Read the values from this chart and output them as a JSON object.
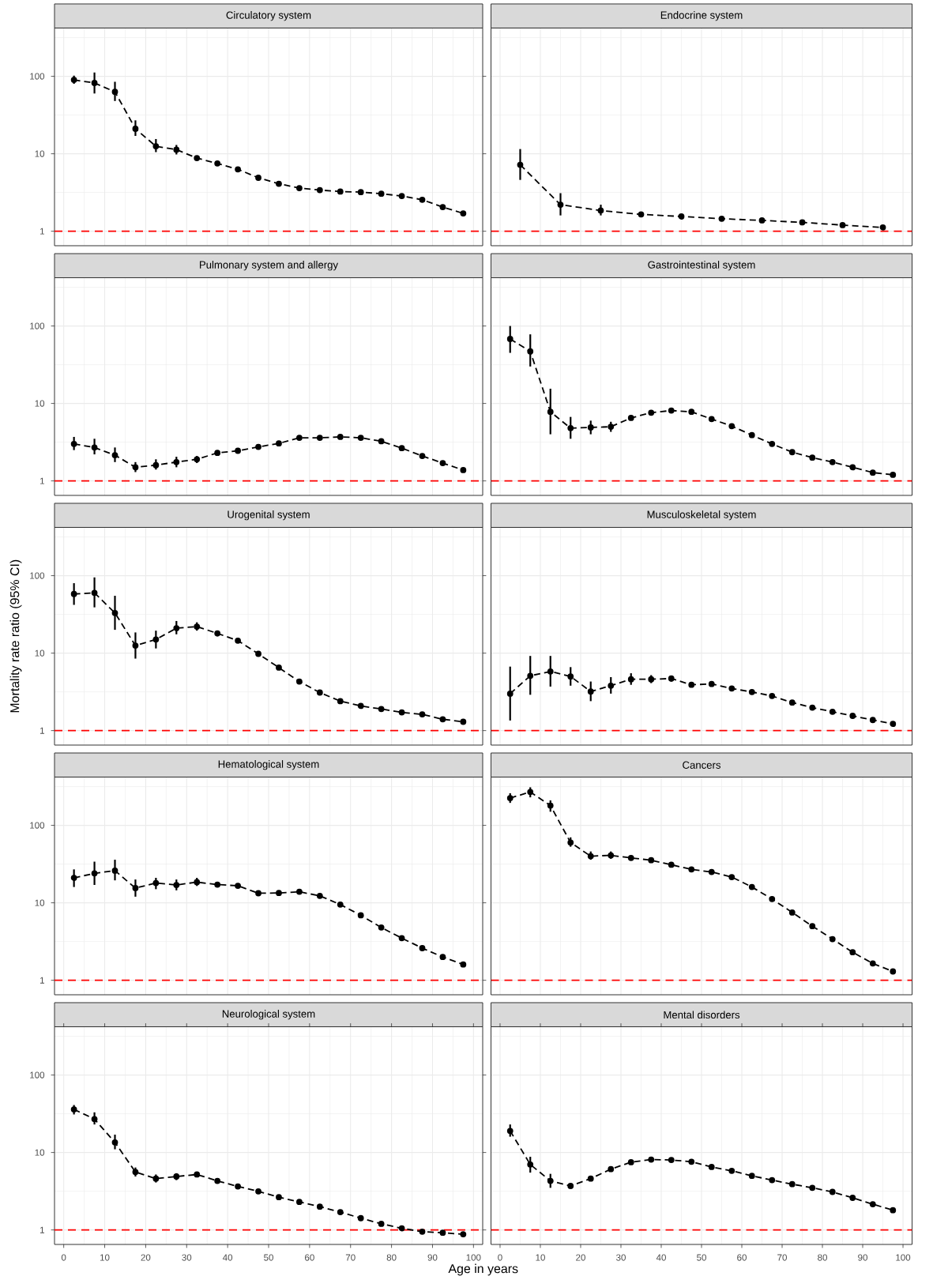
{
  "chart_data": [
    {
      "type": "line",
      "title": "Circulatory system",
      "x": [
        2.5,
        7.5,
        12.5,
        17.5,
        22.5,
        27.5,
        32.5,
        37.5,
        42.5,
        47.5,
        52.5,
        57.5,
        62.5,
        67.5,
        72.5,
        77.5,
        82.5,
        87.5,
        92.5,
        97.5
      ],
      "values": [
        90,
        82,
        63,
        21,
        12.5,
        11.3,
        8.8,
        7.5,
        6.3,
        4.9,
        4.1,
        3.6,
        3.4,
        3.25,
        3.2,
        3.05,
        2.85,
        2.55,
        2.05,
        1.7
      ],
      "errors": [
        [
          80,
          102
        ],
        [
          60,
          112
        ],
        [
          48,
          85
        ],
        [
          17,
          27
        ],
        [
          10.5,
          15.5
        ],
        [
          9.8,
          13
        ],
        null,
        null,
        null,
        null,
        null,
        null,
        null,
        null,
        null,
        null,
        null,
        null,
        null,
        null
      ],
      "color": "#000000",
      "xlim": [
        -2.25,
        102.25
      ],
      "ylim": [
        0.65,
        420
      ],
      "xticks": [
        0,
        10,
        20,
        30,
        40,
        50,
        60,
        70,
        80,
        90,
        100
      ],
      "yticks": [
        1,
        10,
        100
      ],
      "log": "y",
      "grid": true,
      "marker": "circle",
      "line_style": "dashed",
      "tick_labels": "y",
      "ref_lines": [
        {
          "axis": "y",
          "value": 1,
          "color": "#ff0000",
          "line_style": "dashed"
        }
      ]
    },
    {
      "type": "line",
      "title": "Endocrine system",
      "x": [
        5,
        15,
        25,
        35,
        45,
        55,
        65,
        75,
        85,
        95
      ],
      "values": [
        7.2,
        2.2,
        1.85,
        1.65,
        1.55,
        1.45,
        1.38,
        1.3,
        1.2,
        1.12
      ],
      "errors": [
        [
          4.6,
          11.5
        ],
        [
          1.6,
          3.1
        ],
        [
          1.6,
          2.2
        ],
        null,
        null,
        null,
        null,
        null,
        null,
        null
      ],
      "color": "#000000",
      "xlim": [
        -2.25,
        102.25
      ],
      "ylim": [
        0.65,
        420
      ],
      "xticks": [
        0,
        10,
        20,
        30,
        40,
        50,
        60,
        70,
        80,
        90,
        100
      ],
      "yticks": [
        1,
        10,
        100
      ],
      "log": "y",
      "grid": true,
      "marker": "circle",
      "line_style": "dashed",
      "tick_labels": false,
      "ref_lines": [
        {
          "axis": "y",
          "value": 1,
          "color": "#ff0000",
          "line_style": "dashed"
        }
      ]
    },
    {
      "type": "line",
      "title": "Pulmonary system and allergy",
      "x": [
        2.5,
        7.5,
        12.5,
        17.5,
        22.5,
        27.5,
        32.5,
        37.5,
        42.5,
        47.5,
        52.5,
        57.5,
        62.5,
        67.5,
        72.5,
        77.5,
        82.5,
        87.5,
        92.5,
        97.5
      ],
      "values": [
        3.0,
        2.7,
        2.15,
        1.5,
        1.6,
        1.75,
        1.9,
        2.3,
        2.45,
        2.75,
        3.05,
        3.6,
        3.6,
        3.7,
        3.6,
        3.25,
        2.65,
        2.1,
        1.7,
        1.38
      ],
      "errors": [
        [
          2.5,
          3.7
        ],
        [
          2.2,
          3.5
        ],
        [
          1.75,
          2.7
        ],
        [
          1.3,
          1.75
        ],
        [
          1.4,
          1.9
        ],
        [
          1.5,
          2.05
        ],
        [
          1.7,
          2.1
        ],
        null,
        null,
        null,
        null,
        null,
        null,
        null,
        null,
        null,
        null,
        null,
        null,
        null
      ],
      "color": "#000000",
      "xlim": [
        -2.25,
        102.25
      ],
      "ylim": [
        0.65,
        420
      ],
      "xticks": [
        0,
        10,
        20,
        30,
        40,
        50,
        60,
        70,
        80,
        90,
        100
      ],
      "yticks": [
        1,
        10,
        100
      ],
      "log": "y",
      "grid": true,
      "marker": "circle",
      "line_style": "dashed",
      "tick_labels": "y",
      "ref_lines": [
        {
          "axis": "y",
          "value": 1,
          "color": "#ff0000",
          "line_style": "dashed"
        }
      ]
    },
    {
      "type": "line",
      "title": "Gastrointestinal system",
      "x": [
        2.5,
        7.5,
        12.5,
        17.5,
        22.5,
        27.5,
        32.5,
        37.5,
        42.5,
        47.5,
        52.5,
        57.5,
        62.5,
        67.5,
        72.5,
        77.5,
        82.5,
        87.5,
        92.5,
        97.5
      ],
      "values": [
        68,
        47,
        7.8,
        4.8,
        4.9,
        5.0,
        6.5,
        7.6,
        8.1,
        7.8,
        6.3,
        5.1,
        3.9,
        3.0,
        2.35,
        2.0,
        1.75,
        1.5,
        1.28,
        1.2
      ],
      "errors": [
        [
          45,
          100
        ],
        [
          30,
          78
        ],
        [
          4,
          15.5
        ],
        [
          3.5,
          6.7
        ],
        [
          4,
          6
        ],
        [
          4.3,
          5.8
        ],
        null,
        null,
        null,
        null,
        null,
        null,
        null,
        null,
        null,
        null,
        null,
        null,
        null,
        null
      ],
      "color": "#000000",
      "xlim": [
        -2.25,
        102.25
      ],
      "ylim": [
        0.65,
        420
      ],
      "xticks": [
        0,
        10,
        20,
        30,
        40,
        50,
        60,
        70,
        80,
        90,
        100
      ],
      "yticks": [
        1,
        10,
        100
      ],
      "log": "y",
      "grid": true,
      "marker": "circle",
      "line_style": "dashed",
      "tick_labels": false,
      "ref_lines": [
        {
          "axis": "y",
          "value": 1,
          "color": "#ff0000",
          "line_style": "dashed"
        }
      ]
    },
    {
      "type": "line",
      "title": "Urogenital system",
      "ylabel": "Mortality rate ratio (95% CI)",
      "x": [
        2.5,
        7.5,
        12.5,
        17.5,
        22.5,
        27.5,
        32.5,
        37.5,
        42.5,
        47.5,
        52.5,
        57.5,
        62.5,
        67.5,
        72.5,
        77.5,
        82.5,
        87.5,
        92.5,
        97.5
      ],
      "values": [
        58,
        60,
        33,
        12.5,
        15,
        21,
        22,
        18,
        14.5,
        9.8,
        6.5,
        4.3,
        3.1,
        2.4,
        2.08,
        1.9,
        1.72,
        1.62,
        1.4,
        1.3
      ],
      "errors": [
        [
          42,
          80
        ],
        [
          39,
          95
        ],
        [
          20,
          55
        ],
        [
          8.5,
          18.5
        ],
        [
          11.5,
          19.5
        ],
        [
          17.5,
          26
        ],
        [
          19.5,
          25
        ],
        [
          16.5,
          19.5
        ],
        null,
        null,
        null,
        null,
        null,
        null,
        null,
        null,
        null,
        null,
        null,
        null
      ],
      "color": "#000000",
      "xlim": [
        -2.25,
        102.25
      ],
      "ylim": [
        0.65,
        420
      ],
      "xticks": [
        0,
        10,
        20,
        30,
        40,
        50,
        60,
        70,
        80,
        90,
        100
      ],
      "yticks": [
        1,
        10,
        100
      ],
      "log": "y",
      "grid": true,
      "marker": "circle",
      "line_style": "dashed",
      "tick_labels": "y",
      "ref_lines": [
        {
          "axis": "y",
          "value": 1,
          "color": "#ff0000",
          "line_style": "dashed"
        }
      ]
    },
    {
      "type": "line",
      "title": "Musculoskeletal system",
      "x": [
        2.5,
        7.5,
        12.5,
        17.5,
        22.5,
        27.5,
        32.5,
        37.5,
        42.5,
        47.5,
        52.5,
        57.5,
        62.5,
        67.5,
        72.5,
        77.5,
        82.5,
        87.5,
        92.5,
        97.5
      ],
      "values": [
        3.0,
        5.1,
        5.8,
        5.0,
        3.2,
        3.8,
        4.6,
        4.6,
        4.7,
        3.9,
        4.0,
        3.5,
        3.15,
        2.8,
        2.3,
        1.98,
        1.75,
        1.55,
        1.37,
        1.22
      ],
      "errors": [
        [
          1.35,
          6.7
        ],
        [
          2.9,
          9.2
        ],
        [
          3.7,
          9.2
        ],
        [
          3.8,
          6.6
        ],
        [
          2.4,
          4.3
        ],
        [
          3.0,
          4.9
        ],
        [
          3.9,
          5.5
        ],
        [
          4.1,
          5.2
        ],
        [
          4.3,
          5.1
        ],
        null,
        null,
        null,
        null,
        null,
        null,
        null,
        null,
        null,
        null,
        null
      ],
      "color": "#000000",
      "xlim": [
        -2.25,
        102.25
      ],
      "ylim": [
        0.65,
        420
      ],
      "xticks": [
        0,
        10,
        20,
        30,
        40,
        50,
        60,
        70,
        80,
        90,
        100
      ],
      "yticks": [
        1,
        10,
        100
      ],
      "log": "y",
      "grid": true,
      "marker": "circle",
      "line_style": "dashed",
      "tick_labels": false,
      "ref_lines": [
        {
          "axis": "y",
          "value": 1,
          "color": "#ff0000",
          "line_style": "dashed"
        }
      ]
    },
    {
      "type": "line",
      "title": "Hematological system",
      "x": [
        2.5,
        7.5,
        12.5,
        17.5,
        22.5,
        27.5,
        32.5,
        37.5,
        42.5,
        47.5,
        52.5,
        57.5,
        62.5,
        67.5,
        72.5,
        77.5,
        82.5,
        87.5,
        92.5,
        97.5
      ],
      "values": [
        21,
        24,
        26,
        15.5,
        18,
        17,
        18.5,
        17.2,
        16.6,
        13.3,
        13.4,
        13.9,
        12.3,
        9.5,
        6.9,
        4.8,
        3.5,
        2.6,
        2.0,
        1.6
      ],
      "errors": [
        [
          16,
          27
        ],
        [
          17,
          34
        ],
        [
          19.5,
          36
        ],
        [
          12,
          20
        ],
        [
          15,
          21
        ],
        [
          14.5,
          20
        ],
        [
          16.5,
          21
        ],
        null,
        null,
        null,
        null,
        null,
        null,
        null,
        null,
        null,
        null,
        null,
        null,
        null
      ],
      "color": "#000000",
      "xlim": [
        -2.25,
        102.25
      ],
      "ylim": [
        0.65,
        420
      ],
      "xticks": [
        0,
        10,
        20,
        30,
        40,
        50,
        60,
        70,
        80,
        90,
        100
      ],
      "yticks": [
        1,
        10,
        100
      ],
      "log": "y",
      "grid": true,
      "marker": "circle",
      "line_style": "dashed",
      "tick_labels": "y",
      "ref_lines": [
        {
          "axis": "y",
          "value": 1,
          "color": "#ff0000",
          "line_style": "dashed"
        }
      ]
    },
    {
      "type": "line",
      "title": "Cancers",
      "x": [
        2.5,
        7.5,
        12.5,
        17.5,
        22.5,
        27.5,
        32.5,
        37.5,
        42.5,
        47.5,
        52.5,
        57.5,
        62.5,
        67.5,
        72.5,
        77.5,
        82.5,
        87.5,
        92.5,
        97.5
      ],
      "values": [
        225,
        270,
        180,
        60,
        40,
        41,
        38,
        35.5,
        31,
        27,
        25,
        21.5,
        16,
        11.2,
        7.5,
        5.0,
        3.4,
        2.3,
        1.65,
        1.3
      ],
      "errors": [
        [
          195,
          260
        ],
        [
          230,
          310
        ],
        [
          150,
          210
        ],
        [
          53,
          70
        ],
        [
          36,
          46
        ],
        [
          37,
          46
        ],
        null,
        null,
        null,
        null,
        null,
        null,
        null,
        null,
        null,
        null,
        null,
        null,
        null,
        null
      ],
      "color": "#000000",
      "xlim": [
        -2.25,
        102.25
      ],
      "ylim": [
        0.65,
        420
      ],
      "xticks": [
        0,
        10,
        20,
        30,
        40,
        50,
        60,
        70,
        80,
        90,
        100
      ],
      "yticks": [
        1,
        10,
        100
      ],
      "log": "y",
      "grid": true,
      "marker": "circle",
      "line_style": "dashed",
      "tick_labels": false,
      "ref_lines": [
        {
          "axis": "y",
          "value": 1,
          "color": "#ff0000",
          "line_style": "dashed"
        }
      ]
    },
    {
      "type": "line",
      "title": "Neurological system",
      "xlabel": "Age in years",
      "x": [
        2.5,
        7.5,
        12.5,
        17.5,
        22.5,
        27.5,
        32.5,
        37.5,
        42.5,
        47.5,
        52.5,
        57.5,
        62.5,
        67.5,
        72.5,
        77.5,
        82.5,
        87.5,
        92.5,
        97.5
      ],
      "values": [
        36,
        27,
        13.5,
        5.6,
        4.6,
        4.9,
        5.2,
        4.3,
        3.65,
        3.15,
        2.65,
        2.3,
        2.0,
        1.7,
        1.42,
        1.2,
        1.05,
        0.95,
        0.92,
        0.88
      ],
      "errors": [
        [
          31,
          41
        ],
        [
          23,
          33
        ],
        [
          11,
          17
        ],
        [
          4.9,
          6.4
        ],
        [
          4.1,
          5.2
        ],
        [
          4.4,
          5.4
        ],
        null,
        null,
        null,
        null,
        null,
        null,
        null,
        null,
        null,
        null,
        null,
        null,
        null,
        null
      ],
      "color": "#000000",
      "xlim": [
        -2.25,
        102.25
      ],
      "ylim": [
        0.65,
        420
      ],
      "xticks": [
        0,
        10,
        20,
        30,
        40,
        50,
        60,
        70,
        80,
        90,
        100
      ],
      "yticks": [
        1,
        10,
        100
      ],
      "log": "y",
      "grid": true,
      "marker": "circle",
      "line_style": "dashed",
      "ref_lines": [
        {
          "axis": "y",
          "value": 1,
          "color": "#ff0000",
          "line_style": "dashed"
        }
      ]
    },
    {
      "type": "line",
      "title": "Mental disorders",
      "x": [
        2.5,
        7.5,
        12.5,
        17.5,
        22.5,
        27.5,
        32.5,
        37.5,
        42.5,
        47.5,
        52.5,
        57.5,
        62.5,
        67.5,
        72.5,
        77.5,
        82.5,
        87.5,
        92.5,
        97.5
      ],
      "values": [
        19,
        7.0,
        4.3,
        3.7,
        4.6,
        6.1,
        7.5,
        8.1,
        8.0,
        7.6,
        6.5,
        5.8,
        5.0,
        4.4,
        3.9,
        3.5,
        3.1,
        2.6,
        2.15,
        1.8
      ],
      "errors": [
        [
          16,
          23
        ],
        [
          5.5,
          8.8
        ],
        [
          3.5,
          5.3
        ],
        [
          3.4,
          4.0
        ],
        null,
        null,
        null,
        null,
        null,
        null,
        null,
        null,
        null,
        null,
        null,
        null,
        null,
        null,
        null,
        null
      ],
      "color": "#000000",
      "xlim": [
        -2.25,
        102.25
      ],
      "ylim": [
        0.65,
        420
      ],
      "xticks": [
        0,
        10,
        20,
        30,
        40,
        50,
        60,
        70,
        80,
        90,
        100
      ],
      "yticks": [
        1,
        10,
        100
      ],
      "log": "y",
      "grid": true,
      "marker": "circle",
      "line_style": "dashed",
      "tick_labels": "x",
      "ref_lines": [
        {
          "axis": "y",
          "value": 1,
          "color": "#ff0000",
          "line_style": "dashed"
        }
      ]
    }
  ]
}
